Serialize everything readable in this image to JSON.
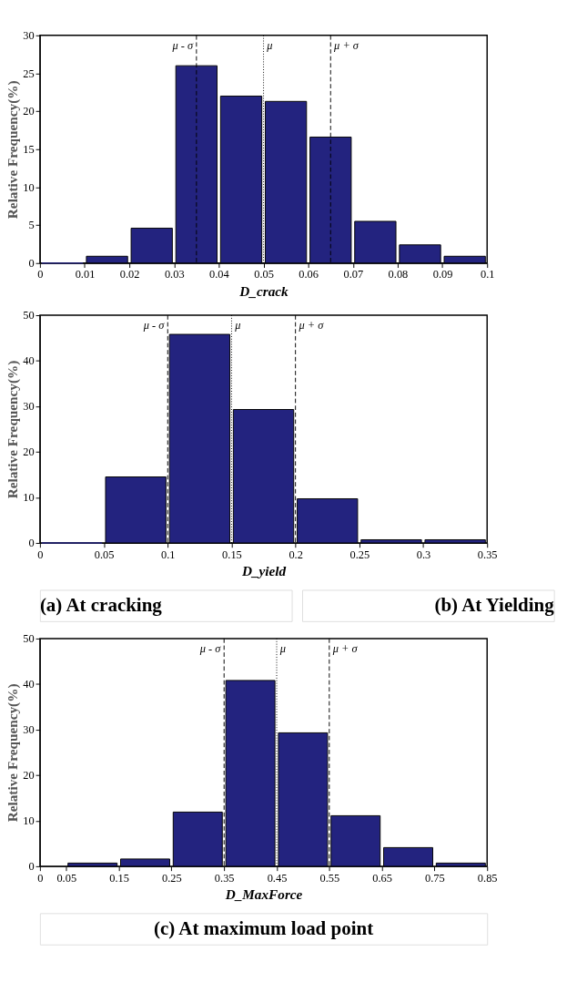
{
  "chart_data": [
    {
      "type": "histogram",
      "xlabel": "D_crack",
      "ylabel": "Relative Frequency(%)",
      "color": "#23237f",
      "bins": [
        0,
        0.01,
        0.02,
        0.03,
        0.04,
        0.05,
        0.06,
        0.07,
        0.08,
        0.09,
        0.1
      ],
      "values": [
        0,
        0.9,
        4.6,
        26,
        22,
        21.3,
        16.6,
        5.5,
        2.4,
        0.9
      ],
      "xlim": [
        0,
        0.1
      ],
      "xticks": [
        0,
        0.01,
        0.02,
        0.03,
        0.04,
        0.05,
        0.06,
        0.07,
        0.08,
        0.09,
        0.1
      ],
      "ylim": [
        0,
        30
      ],
      "yticks": [
        0,
        5,
        10,
        15,
        20,
        25,
        30
      ],
      "grid": false,
      "ref_lines": [
        {
          "axis": "x",
          "value": 0.035,
          "label": "μ - σ",
          "line_style": "dashed"
        },
        {
          "axis": "x",
          "value": 0.05,
          "label": "μ",
          "line_style": "dotted"
        },
        {
          "axis": "x",
          "value": 0.065,
          "label": "μ + σ",
          "line_style": "dashed"
        }
      ],
      "annotations": [
        "(a) At cracking"
      ]
    },
    {
      "type": "histogram",
      "xlabel": "D_yield",
      "ylabel": "Relative Frequency(%)",
      "color": "#23237f",
      "bins": [
        0,
        0.05,
        0.1,
        0.15,
        0.2,
        0.25,
        0.3,
        0.35
      ],
      "values": [
        0,
        14.5,
        45.8,
        29.3,
        9.7,
        0.7,
        0.7
      ],
      "xlim": [
        0,
        0.35
      ],
      "xticks": [
        0,
        0.05,
        0.1,
        0.15,
        0.2,
        0.25,
        0.3,
        0.35
      ],
      "ylim": [
        0,
        50
      ],
      "yticks": [
        0,
        10,
        20,
        30,
        40,
        50
      ],
      "grid": false,
      "ref_lines": [
        {
          "axis": "x",
          "value": 0.1,
          "label": "μ - σ",
          "line_style": "dashed"
        },
        {
          "axis": "x",
          "value": 0.15,
          "label": "μ",
          "line_style": "dotted"
        },
        {
          "axis": "x",
          "value": 0.2,
          "label": "μ + σ",
          "line_style": "dashed"
        }
      ],
      "annotations": [
        "(b) At Yielding"
      ]
    },
    {
      "type": "histogram",
      "xlabel": "D_MaxForce",
      "ylabel": "Relative Frequency(%)",
      "color": "#23237f",
      "bins": [
        0.05,
        0.15,
        0.25,
        0.35,
        0.45,
        0.55,
        0.65,
        0.75,
        0.85
      ],
      "values": [
        0.7,
        1.6,
        11.9,
        40.8,
        29.3,
        11.1,
        4.1,
        0.7
      ],
      "xlim": [
        0,
        0.85
      ],
      "xticks": [
        0,
        0.05,
        0.15,
        0.25,
        0.35,
        0.45,
        0.55,
        0.65,
        0.75,
        0.85
      ],
      "ylim": [
        0,
        50
      ],
      "yticks": [
        0,
        10,
        20,
        30,
        40,
        50
      ],
      "grid": false,
      "ref_lines": [
        {
          "axis": "x",
          "value": 0.35,
          "label": "μ - σ",
          "line_style": "dashed"
        },
        {
          "axis": "x",
          "value": 0.45,
          "label": "μ",
          "line_style": "dotted"
        },
        {
          "axis": "x",
          "value": 0.55,
          "label": "μ + σ",
          "line_style": "dashed"
        }
      ],
      "annotations": [
        "(c) At maximum load point"
      ]
    }
  ]
}
